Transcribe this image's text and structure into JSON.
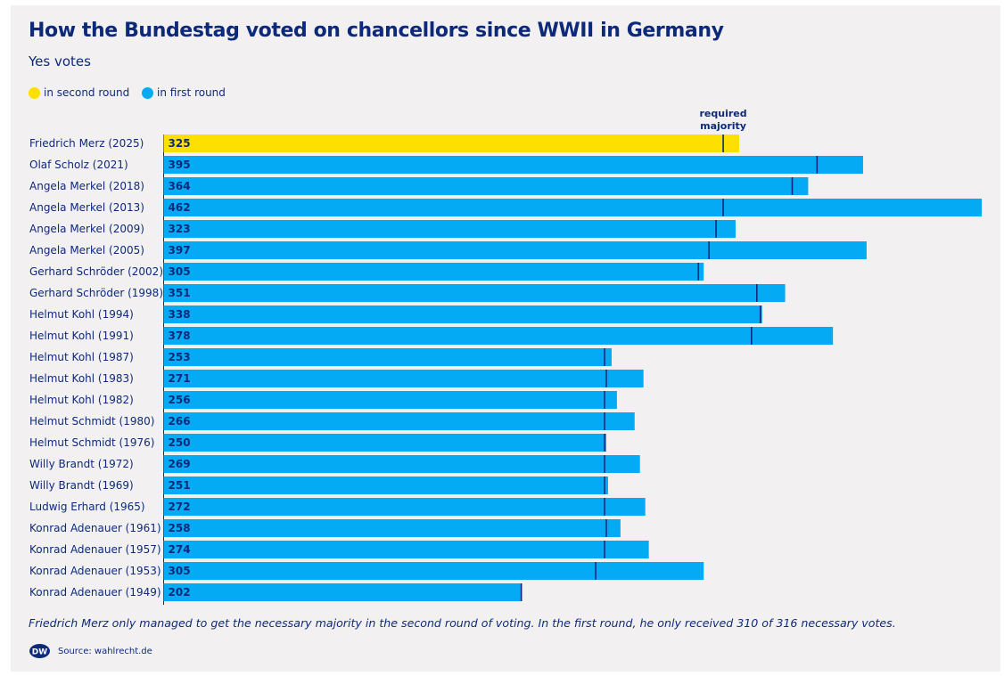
{
  "header": {
    "title": "How the Bundestag voted on chancellors since WWII in Germany",
    "subtitle": "Yes votes"
  },
  "legend": {
    "second_round": "in second round",
    "first_round": "in first round"
  },
  "colors": {
    "second_round": "#fee000",
    "first_round": "#05aaf5",
    "majority_marker": "#0d2a7a",
    "text": "#0d2a7a"
  },
  "chart_data": {
    "type": "bar",
    "orientation": "horizontal",
    "title": "How the Bundestag voted on chancellors since WWII in Germany",
    "subtitle": "Yes votes",
    "xlabel": "",
    "ylabel": "",
    "majority_label": "required majority",
    "categories": [
      "Friedrich Merz (2025)",
      "Olaf Scholz (2021)",
      "Angela Merkel (2018)",
      "Angela Merkel (2013)",
      "Angela Merkel (2009)",
      "Angela Merkel (2005)",
      "Gerhard Schröder (2002)",
      "Gerhard Schröder (1998)",
      "Helmut Kohl (1994)",
      "Helmut Kohl (1991)",
      "Helmut Kohl (1987)",
      "Helmut Kohl (1983)",
      "Helmut Kohl (1982)",
      "Helmut Schmidt (1980)",
      "Helmut Schmidt (1976)",
      "Willy Brandt (1972)",
      "Willy Brandt (1969)",
      "Ludwig Erhard (1965)",
      "Konrad Adenauer (1961)",
      "Konrad Adenauer (1957)",
      "Konrad Adenauer (1953)",
      "Konrad Adenauer (1949)"
    ],
    "values": [
      325,
      395,
      364,
      462,
      323,
      397,
      305,
      351,
      338,
      378,
      253,
      271,
      256,
      266,
      250,
      269,
      251,
      272,
      258,
      274,
      305,
      202
    ],
    "required_majority": [
      316,
      369,
      355,
      316,
      312,
      308,
      302,
      335,
      337,
      332,
      249,
      250,
      249,
      249,
      249,
      249,
      249,
      249,
      250,
      249,
      244,
      202
    ],
    "round": [
      "second",
      "first",
      "first",
      "first",
      "first",
      "first",
      "first",
      "first",
      "first",
      "first",
      "first",
      "first",
      "first",
      "first",
      "first",
      "first",
      "first",
      "first",
      "first",
      "first",
      "first",
      "first"
    ],
    "xlim": [
      0,
      462
    ]
  },
  "footer": {
    "note": "Friedrich Merz only managed to get the necessary majority in the second round of voting. In the first round, he only received 310 of 316 necessary votes.",
    "source": "Source: wahlrecht.de",
    "logo_text": "DW"
  }
}
